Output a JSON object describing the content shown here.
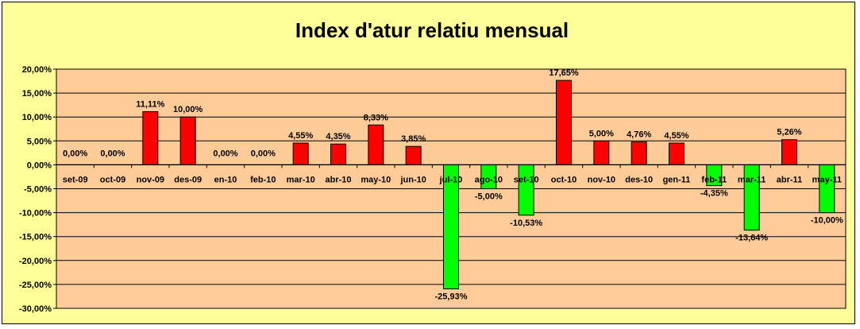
{
  "chart_data": {
    "type": "bar",
    "title": "Index d'atur relatiu mensual",
    "xlabel": "",
    "ylabel": "",
    "categories": [
      "set-09",
      "oct-09",
      "nov-09",
      "des-09",
      "en-10",
      "feb-10",
      "mar-10",
      "abr-10",
      "may-10",
      "jun-10",
      "jul-10",
      "ago-10",
      "set-10",
      "oct-10",
      "nov-10",
      "des-10",
      "gen-11",
      "feb-11",
      "mar-11",
      "abr-11",
      "may-11"
    ],
    "values": [
      0.0,
      0.0,
      11.11,
      10.0,
      0.0,
      0.0,
      4.55,
      4.35,
      8.33,
      3.85,
      -25.93,
      -5.0,
      -10.53,
      17.65,
      5.0,
      4.76,
      4.55,
      -4.35,
      -13.64,
      5.26,
      -10.0
    ],
    "data_labels": [
      "0,00%",
      "0,00%",
      "11,11%",
      "10,00%",
      "0,00%",
      "0,00%",
      "4,55%",
      "4,35%",
      "8,33%",
      "3,85%",
      "-25,93%",
      "-5,00%",
      "-10,53%",
      "17,65%",
      "5,00%",
      "4,76%",
      "4,55%",
      "-4,35%",
      "-13,64%",
      "5,26%",
      "-10,00%"
    ],
    "ylim": [
      -30,
      20
    ],
    "yticks": [
      20,
      15,
      10,
      5,
      0,
      -5,
      -10,
      -15,
      -20,
      -25,
      -30
    ],
    "ytick_labels": [
      "20,00%",
      "15,00%",
      "10,00%",
      "5,00%",
      "0,00%",
      "-5,00%",
      "-10,00%",
      "-15,00%",
      "-20,00%",
      "-25,00%",
      "-30,00%"
    ],
    "grid": true,
    "legend": "none",
    "colors": {
      "positive": "#ff0000",
      "negative": "#00ff00",
      "plot_background": "#ffcc99",
      "chart_background": "#ffff99",
      "gridline": "#000000"
    }
  }
}
